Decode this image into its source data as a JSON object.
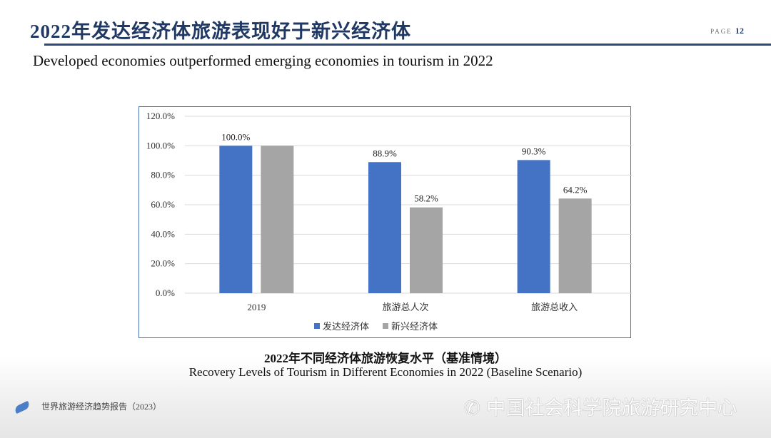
{
  "header": {
    "title": "2022年发达经济体旅游表现好于新兴经济体",
    "page_label": "PAGE",
    "page_number": "12"
  },
  "subtitle": "Developed economies outperformed emerging economies in tourism in 2022",
  "caption": {
    "zh": "2022年不同经济体旅游恢复水平（基准情境）",
    "en": "Recovery Levels of Tourism in Different Economies in 2022 (Baseline Scenario)"
  },
  "footer": {
    "report": "世界旅游经济趋势报告（2023）",
    "watermark": "中国社会科学院旅游研究中心"
  },
  "chart_data": {
    "type": "bar",
    "categories": [
      "2019",
      "旅游总人次",
      "旅游总收入"
    ],
    "series": [
      {
        "name": "发达经济体",
        "values": [
          100.0,
          88.9,
          90.3
        ],
        "labels": [
          "100.0%",
          "88.9%",
          "90.3%"
        ],
        "color": "#4472c4"
      },
      {
        "name": "新兴经济体",
        "values": [
          100.0,
          58.2,
          64.2
        ],
        "labels": [
          "",
          "58.2%",
          "64.2%"
        ],
        "color": "#a5a5a5"
      }
    ],
    "ylim": [
      0,
      120
    ],
    "yticks": [
      "0.0%",
      "20.0%",
      "40.0%",
      "60.0%",
      "80.0%",
      "100.0%",
      "120.0%"
    ],
    "grid": true,
    "legend": "bottom"
  }
}
